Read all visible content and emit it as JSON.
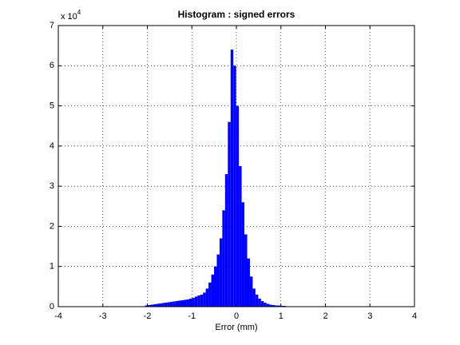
{
  "chart_data": {
    "type": "histogram",
    "title": "Histogram : signed errors",
    "x_label": "Error (mm)",
    "y_scale": {
      "base": "x 10",
      "exponent": "4"
    },
    "color": "#0000ff",
    "bins": [
      -3.85,
      -3.788,
      -3.726,
      -3.664,
      -3.602,
      -3.54,
      -3.478,
      -3.416,
      -3.354,
      -3.292,
      -3.23,
      -3.168,
      -3.106,
      -3.044,
      -2.982,
      -2.92,
      -2.858,
      -2.796,
      -2.734,
      -2.672,
      -2.61,
      -2.548,
      -2.486,
      -2.424,
      -2.362,
      -2.3,
      -2.238,
      -2.176,
      -2.114,
      -2.052,
      -1.99,
      -1.928,
      -1.866,
      -1.804,
      -1.742,
      -1.68,
      -1.618,
      -1.556,
      -1.494,
      -1.432,
      -1.37,
      -1.308,
      -1.246,
      -1.184,
      -1.122,
      -1.06,
      -0.998,
      -0.936,
      -0.874,
      -0.812,
      -0.75,
      -0.688,
      -0.626,
      -0.564,
      -0.502,
      -0.44,
      -0.378,
      -0.316,
      -0.254,
      -0.192,
      -0.13,
      -0.068,
      -0.006,
      0.056,
      0.118,
      0.18,
      0.242,
      0.304,
      0.366,
      0.428,
      0.49,
      0.552,
      0.614,
      0.676,
      0.738,
      0.8,
      0.862,
      0.924,
      0.986,
      1.048,
      1.11,
      1.172,
      1.234,
      1.296,
      1.358,
      1.42,
      1.482,
      1.544,
      1.606,
      1.668,
      1.73,
      1.792,
      1.854,
      1.916,
      1.978,
      2.04,
      2.102,
      2.164,
      2.226,
      2.288,
      2.35
    ],
    "values": [
      0.01,
      0.01,
      0.01,
      0.01,
      0.01,
      0.01,
      0.01,
      0.01,
      0.01,
      0.01,
      0.01,
      0.01,
      0.01,
      0.01,
      0.01,
      0.01,
      0.01,
      0.01,
      0.01,
      0.01,
      0.01,
      0.01,
      0.01,
      0.01,
      0.01,
      0.01,
      0.01,
      0.01,
      0.01,
      0.03,
      0.04,
      0.05,
      0.06,
      0.07,
      0.08,
      0.09,
      0.1,
      0.11,
      0.12,
      0.13,
      0.14,
      0.15,
      0.16,
      0.17,
      0.18,
      0.2,
      0.22,
      0.25,
      0.28,
      0.3,
      0.35,
      0.45,
      0.6,
      0.8,
      1.0,
      1.3,
      1.7,
      2.4,
      3.3,
      4.6,
      6.4,
      6.0,
      5.0,
      3.5,
      2.6,
      1.8,
      1.2,
      0.75,
      0.45,
      0.3,
      0.2,
      0.14,
      0.1,
      0.07,
      0.05,
      0.04,
      0.03,
      0.03,
      0.02,
      0.02,
      0.01,
      0.01,
      0.01,
      0.01,
      0.01,
      0.01,
      0.01,
      0.01,
      0.01,
      0.01,
      0.01,
      0.01,
      0.01,
      0.01,
      0.01,
      0.005,
      0.005,
      0.005,
      0.005,
      0.005
    ],
    "xlim": [
      -4,
      4
    ],
    "xticks": [
      -4,
      -3,
      -2,
      -1,
      0,
      1,
      2,
      3,
      4
    ],
    "ylim": [
      0,
      7
    ],
    "yticks": [
      0,
      1,
      2,
      3,
      4,
      5,
      6,
      7
    ],
    "grid": true
  }
}
